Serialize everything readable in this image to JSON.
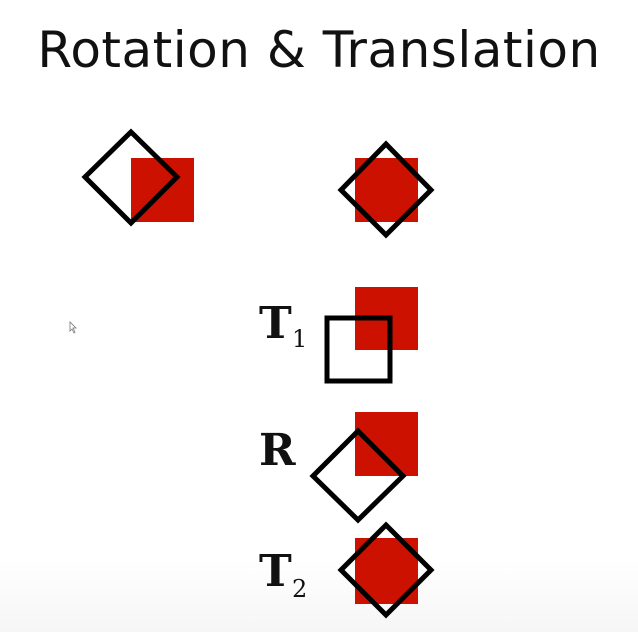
{
  "slide": {
    "title": "Rotation & Translation"
  },
  "steps": [
    {
      "letter": "T",
      "subscript": "1"
    },
    {
      "letter": "R",
      "subscript": ""
    },
    {
      "letter": "T",
      "subscript": "2"
    }
  ],
  "colors": {
    "square_fill": "#cc1100",
    "outline": "#000000",
    "text": "#111111"
  }
}
